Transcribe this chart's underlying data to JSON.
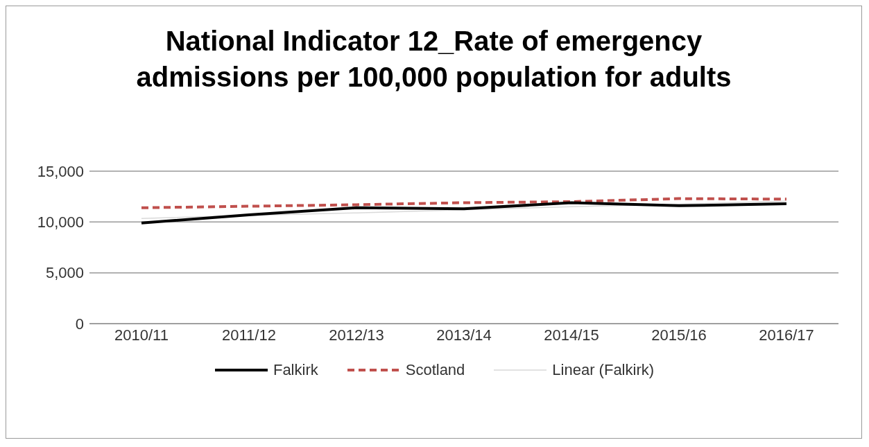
{
  "chart_data": {
    "type": "line",
    "title": "National Indicator 12_Rate of emergency admissions per 100,000 population for adults",
    "categories": [
      "2010/11",
      "2011/12",
      "2012/13",
      "2013/14",
      "2014/15",
      "2015/16",
      "2016/17"
    ],
    "series": [
      {
        "name": "Falkirk",
        "color": "#000000",
        "line_style": "solid",
        "values": [
          9900,
          10700,
          11400,
          11300,
          11900,
          11600,
          11800
        ]
      },
      {
        "name": "Scotland",
        "color": "#c0504d",
        "line_style": "dashed",
        "values": [
          11400,
          11550,
          11700,
          11900,
          12000,
          12300,
          12250
        ]
      },
      {
        "name": "Linear (Falkirk)",
        "color": "#d9d9d9",
        "line_style": "solid",
        "values": [
          10350,
          10650,
          10900,
          11200,
          11500,
          11750,
          12050
        ]
      }
    ],
    "ylim": [
      0,
      15000
    ],
    "yticks": [
      0,
      {
        "value": 5000,
        "label": "5,000"
      },
      {
        "value": 10000,
        "label": "10,000"
      },
      {
        "value": 15000,
        "label": "15,000"
      }
    ],
    "grid": "y",
    "legend": "bottom",
    "marker": "none"
  }
}
